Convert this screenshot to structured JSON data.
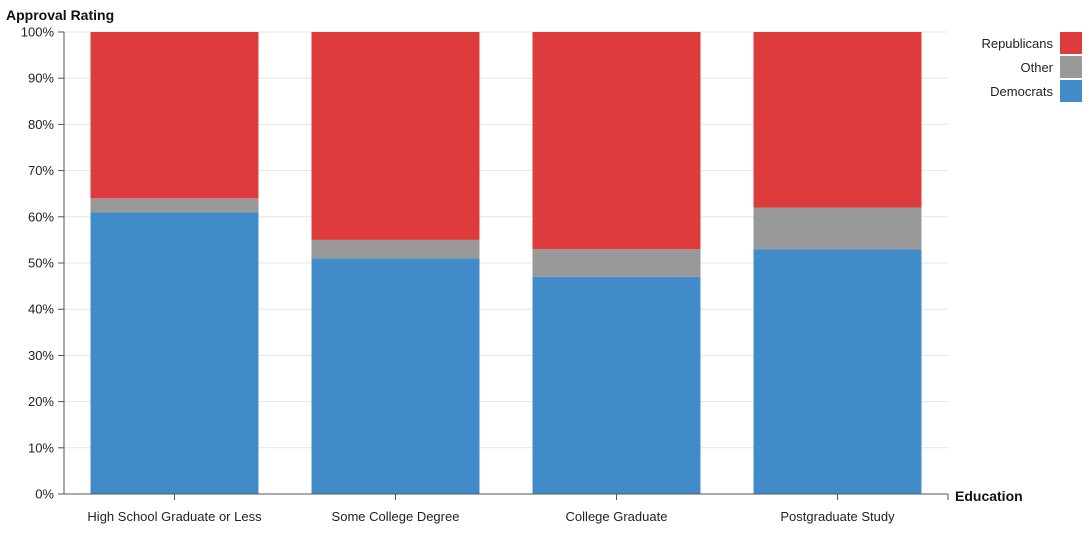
{
  "chart_data": {
    "type": "bar",
    "stacked": true,
    "title": "",
    "ylabel": "Approval Rating",
    "xlabel": "Education",
    "ylim": [
      0,
      100
    ],
    "yticks": [
      "0%",
      "10%",
      "20%",
      "30%",
      "40%",
      "50%",
      "60%",
      "70%",
      "80%",
      "90%",
      "100%"
    ],
    "categories": [
      "High School Graduate or Less",
      "Some College Degree",
      "College Graduate",
      "Postgraduate Study"
    ],
    "series": [
      {
        "name": "Democrats",
        "color": "#418bc8",
        "values": [
          61,
          51,
          47,
          53
        ]
      },
      {
        "name": "Other",
        "color": "#999999",
        "values": [
          3,
          4,
          6,
          9
        ]
      },
      {
        "name": "Republicans",
        "color": "#dd3b3c",
        "values": [
          36,
          45,
          47,
          38
        ]
      }
    ],
    "grid": true,
    "legend_position": "top-right",
    "legend_order": [
      "Republicans",
      "Other",
      "Democrats"
    ]
  }
}
